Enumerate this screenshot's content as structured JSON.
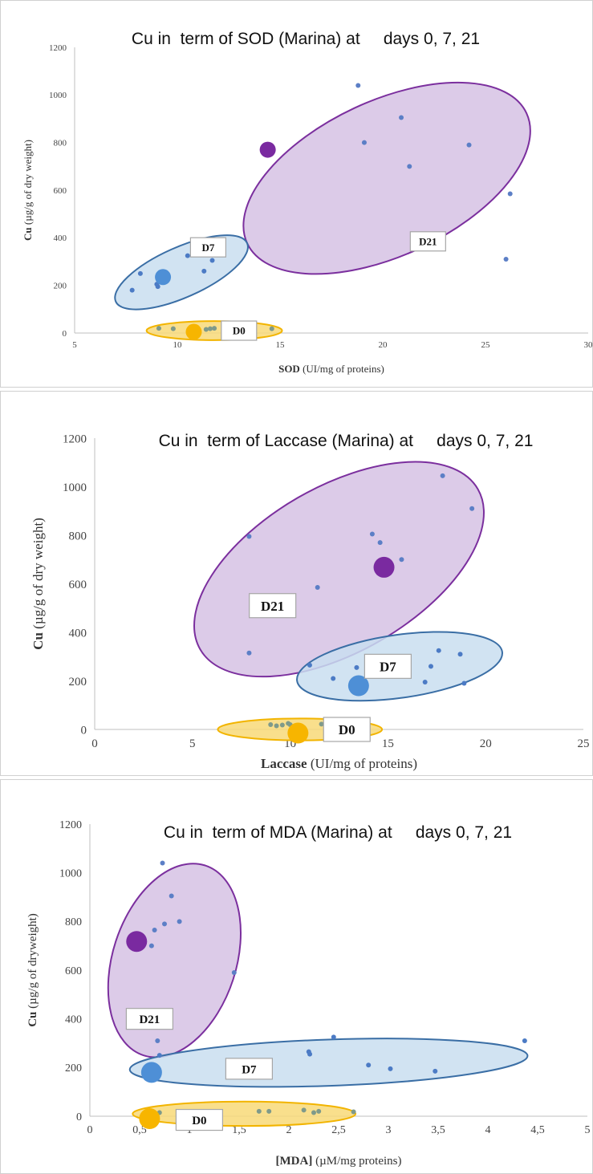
{
  "chart_data": [
    {
      "type": "scatter",
      "title": "Cu in  term of SOD (Marina) at     days 0, 7, 21",
      "xlabel_bold": "SOD",
      "xlabel_rest": " (UI/mg of proteins)",
      "ylabel_bold": "Cu",
      "ylabel_rest": " (µg/g of dry weight)",
      "xlim": [
        5,
        30
      ],
      "ylim": [
        0,
        1200
      ],
      "xticks": [
        "5",
        "10",
        "15",
        "20",
        "25",
        "30"
      ],
      "yticks": [
        "0",
        "200",
        "400",
        "600",
        "800",
        "1000",
        "1200"
      ],
      "grid": false,
      "groups": [
        {
          "name": "D0",
          "fill": "#f8d978",
          "stroke": "#f2b400",
          "mean_color": "#f7b500",
          "point_color": "#7f9a8a",
          "ellipse": {
            "cx": 11.8,
            "cy": 10,
            "rx": 3.3,
            "ry": 40,
            "angle": 0
          },
          "mean": {
            "x": 10.8,
            "y": 5
          },
          "points": [
            [
              9.1,
              20
            ],
            [
              9.8,
              18
            ],
            [
              11.4,
              15
            ],
            [
              11.6,
              18
            ],
            [
              11.8,
              20
            ],
            [
              14.6,
              18
            ]
          ],
          "label_pos": {
            "x": 13.0,
            "y": 10
          }
        },
        {
          "name": "D7",
          "fill": "#c9def0",
          "stroke": "#3a6ea5",
          "mean_color": "#4e8fd6",
          "point_color": "#4c7bc5",
          "ellipse": {
            "cx": 10.2,
            "cy": 255,
            "rx": 3.5,
            "ry": 105,
            "angle": -24
          },
          "mean": {
            "x": 9.3,
            "y": 235
          },
          "points": [
            [
              7.8,
              180
            ],
            [
              8.2,
              250
            ],
            [
              9.0,
              205
            ],
            [
              9.05,
              195
            ],
            [
              10.5,
              325
            ],
            [
              11.3,
              260
            ],
            [
              11.7,
              305
            ]
          ],
          "label_pos": {
            "x": 11.5,
            "y": 360
          }
        },
        {
          "name": "D21",
          "fill": "#d6c2e4",
          "stroke": "#7b2f9e",
          "mean_color": "#7a2aa0",
          "point_color": "#5c7fc6",
          "ellipse": {
            "cx": 20.2,
            "cy": 650,
            "rx": 7.5,
            "ry": 325,
            "angle": -25
          },
          "mean": {
            "x": 14.4,
            "y": 770
          },
          "points": [
            [
              18.8,
              1040
            ],
            [
              20.9,
              905
            ],
            [
              19.1,
              800
            ],
            [
              24.2,
              790
            ],
            [
              21.3,
              700
            ],
            [
              26.2,
              585
            ],
            [
              26.0,
              310
            ]
          ],
          "label_pos": {
            "x": 22.2,
            "y": 385
          }
        }
      ]
    },
    {
      "type": "scatter",
      "title": "Cu in  term of Laccase (Marina) at     days 0, 7, 21",
      "xlabel_bold": "Laccase",
      "xlabel_rest": " (UI/mg of proteins)",
      "ylabel_bold": "Cu",
      "ylabel_rest": " (µg/g of dry weight)",
      "xlim": [
        0,
        25
      ],
      "ylim": [
        0,
        1200
      ],
      "xticks": [
        "0",
        "5",
        "10",
        "15",
        "20",
        "25"
      ],
      "yticks": [
        "0",
        "200",
        "400",
        "600",
        "800",
        "1000",
        "1200"
      ],
      "grid": false,
      "groups": [
        {
          "name": "D0",
          "fill": "#f8d978",
          "stroke": "#f2b400",
          "mean_color": "#f7b500",
          "point_color": "#7f9a8a",
          "ellipse": {
            "cx": 10.5,
            "cy": 0,
            "rx": 4.2,
            "ry": 45,
            "angle": 0
          },
          "mean": {
            "x": 10.4,
            "y": -15
          },
          "points": [
            [
              9.0,
              20
            ],
            [
              9.3,
              15
            ],
            [
              9.6,
              18
            ],
            [
              9.9,
              25
            ],
            [
              10.0,
              20
            ],
            [
              11.6,
              22
            ]
          ],
          "label_pos": {
            "x": 12.9,
            "y": 0
          }
        },
        {
          "name": "D7",
          "fill": "#c9def0",
          "stroke": "#3a6ea5",
          "mean_color": "#4e8fd6",
          "point_color": "#4c7bc5",
          "ellipse": {
            "cx": 15.6,
            "cy": 260,
            "rx": 5.3,
            "ry": 130,
            "angle": -8
          },
          "mean": {
            "x": 13.5,
            "y": 180
          },
          "points": [
            [
              11.0,
              265
            ],
            [
              12.2,
              210
            ],
            [
              13.4,
              255
            ],
            [
              16.9,
              195
            ],
            [
              17.2,
              260
            ],
            [
              17.6,
              325
            ],
            [
              18.7,
              310
            ],
            [
              18.9,
              190
            ]
          ],
          "label_pos": {
            "x": 15.0,
            "y": 260
          }
        },
        {
          "name": "D21",
          "fill": "#d6c2e4",
          "stroke": "#7b2f9e",
          "mean_color": "#7a2aa0",
          "point_color": "#5c7fc6",
          "ellipse": {
            "cx": 12.5,
            "cy": 660,
            "rx": 8.2,
            "ry": 340,
            "angle": -30
          },
          "mean": {
            "x": 14.8,
            "y": 668
          },
          "points": [
            [
              7.9,
              795
            ],
            [
              7.9,
              315
            ],
            [
              11.4,
              585
            ],
            [
              14.2,
              805
            ],
            [
              14.6,
              770
            ],
            [
              15.7,
              700
            ],
            [
              17.8,
              1045
            ],
            [
              19.3,
              910
            ]
          ],
          "label_pos": {
            "x": 9.1,
            "y": 510
          }
        }
      ]
    },
    {
      "type": "scatter",
      "title": "Cu in  term of MDA (Marina) at     days 0, 7, 21",
      "xlabel_bold": "[MDA]",
      "xlabel_rest": " (µM/mg proteins)",
      "ylabel_bold": "Cu",
      "ylabel_rest": " (µg/g of dryweight)",
      "xlim": [
        0,
        5
      ],
      "ylim": [
        0,
        1200
      ],
      "xticks": [
        "0",
        "0,5",
        "1",
        "1,5",
        "2",
        "2,5",
        "3",
        "3,5",
        "4",
        "4,5",
        "5"
      ],
      "yticks": [
        "0",
        "200",
        "400",
        "600",
        "800",
        "1000",
        "1200"
      ],
      "grid": false,
      "groups": [
        {
          "name": "D0",
          "fill": "#f8d978",
          "stroke": "#f2b400",
          "mean_color": "#f7b500",
          "point_color": "#7f9a8a",
          "ellipse": {
            "cx": 1.55,
            "cy": 10,
            "rx": 1.12,
            "ry": 50,
            "angle": 0
          },
          "mean": {
            "x": 0.6,
            "y": -10
          },
          "points": [
            [
              0.7,
              15
            ],
            [
              1.7,
              20
            ],
            [
              1.8,
              20
            ],
            [
              2.15,
              25
            ],
            [
              2.25,
              15
            ],
            [
              2.3,
              20
            ],
            [
              2.65,
              18
            ]
          ],
          "label_pos": {
            "x": 1.1,
            "y": -15
          }
        },
        {
          "name": "D7",
          "fill": "#c9def0",
          "stroke": "#3a6ea5",
          "mean_color": "#4e8fd6",
          "point_color": "#4c7bc5",
          "ellipse": {
            "cx": 2.4,
            "cy": 220,
            "rx": 2.0,
            "ry": 95,
            "angle": -2
          },
          "mean": {
            "x": 0.62,
            "y": 180
          },
          "points": [
            [
              0.7,
              250
            ],
            [
              2.2,
              265
            ],
            [
              2.21,
              255
            ],
            [
              2.45,
              325
            ],
            [
              2.8,
              210
            ],
            [
              3.02,
              195
            ],
            [
              3.47,
              185
            ],
            [
              4.37,
              310
            ]
          ],
          "label_pos": {
            "x": 1.6,
            "y": 195
          }
        },
        {
          "name": "D21",
          "fill": "#d6c2e4",
          "stroke": "#7b2f9e",
          "mean_color": "#7a2aa0",
          "point_color": "#5c7fc6",
          "ellipse": {
            "cx": 0.85,
            "cy": 640,
            "rx": 0.62,
            "ry": 410,
            "angle": 18
          },
          "mean": {
            "x": 0.47,
            "y": 718
          },
          "points": [
            [
              0.68,
              310
            ],
            [
              0.62,
              700
            ],
            [
              0.65,
              765
            ],
            [
              0.75,
              790
            ],
            [
              0.82,
              905
            ],
            [
              0.9,
              800
            ],
            [
              0.73,
              1040
            ],
            [
              1.45,
              590
            ]
          ],
          "label_pos": {
            "x": 0.6,
            "y": 400
          }
        }
      ]
    }
  ]
}
